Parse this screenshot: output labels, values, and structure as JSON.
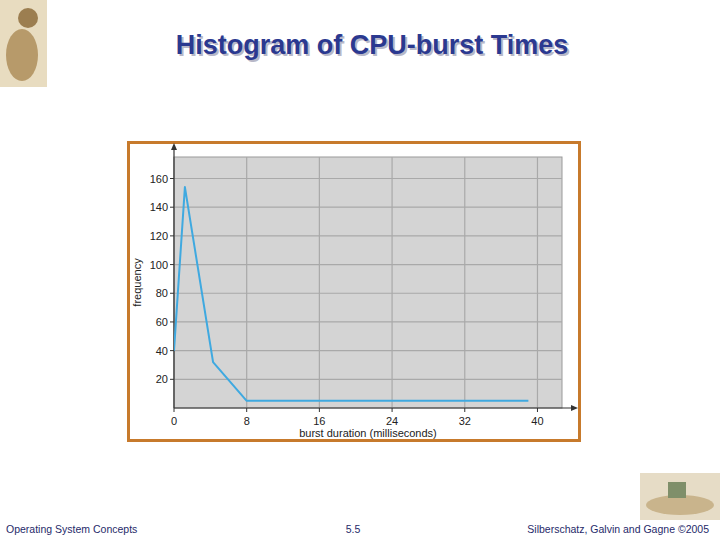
{
  "chart_data": {
    "type": "line",
    "title": "Histogram of CPU-burst Times",
    "x_label": "burst duration (milliseconds)",
    "y_label": "frequency",
    "x": [
      0,
      1.2,
      4.3,
      8,
      39
    ],
    "values": [
      40,
      154,
      32,
      5,
      5
    ],
    "color": "#3fa9e0",
    "xlim": [
      0,
      42.7
    ],
    "xticks": [
      0,
      8,
      16,
      24,
      32,
      40
    ],
    "ylim": [
      0,
      175
    ],
    "yticks": [
      20,
      40,
      60,
      80,
      100,
      120,
      140,
      160
    ],
    "grid": true
  },
  "footer": {
    "left": "Operating System Concepts",
    "center": "5.5",
    "right": "Silberschatz, Galvin and Gagne ©2005"
  }
}
